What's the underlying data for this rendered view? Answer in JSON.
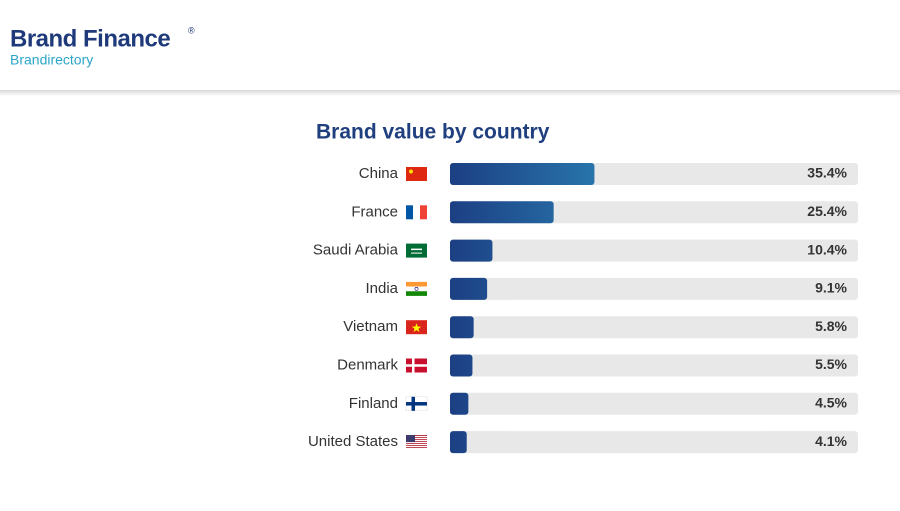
{
  "header": {
    "brand": "Brand Finance",
    "mark": "®",
    "subtitle": "Brandirectory"
  },
  "chart_data": {
    "type": "bar",
    "title": "Brand value by country",
    "categories": [
      "China",
      "France",
      "Saudi Arabia",
      "India",
      "Vietnam",
      "Denmark",
      "Finland",
      "United States"
    ],
    "values": [
      35.4,
      25.4,
      10.4,
      9.1,
      5.8,
      5.5,
      4.5,
      4.1
    ],
    "value_labels": [
      "35.4%",
      "25.4%",
      "10.4%",
      "9.1%",
      "5.8%",
      "5.5%",
      "4.5%",
      "4.1%"
    ],
    "xlim": [
      0,
      100
    ],
    "color": "#1d4687"
  }
}
